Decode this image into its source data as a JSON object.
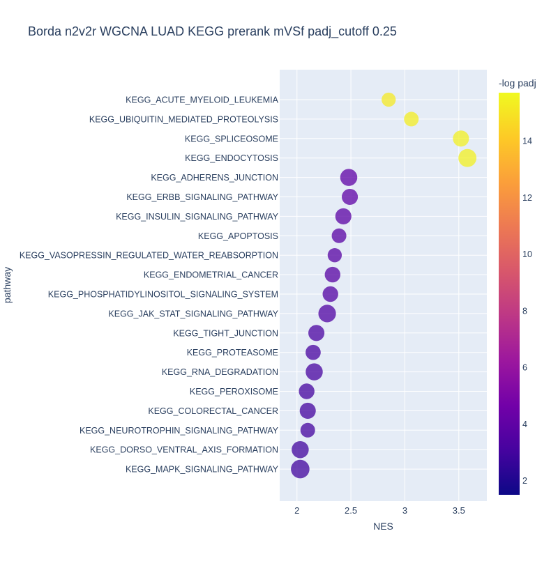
{
  "chart_data": {
    "type": "scatter",
    "title": "Borda n2v2r WGCNA LUAD KEGG prerank mVSf padj_cutoff 0.25",
    "xlabel": "NES",
    "ylabel": "pathway",
    "xlim": [
      1.84,
      3.76
    ],
    "xticks": [
      2,
      2.5,
      3,
      3.5
    ],
    "xtick_labels": [
      "2",
      "2.5",
      "3",
      "3.5"
    ],
    "grid": true,
    "colorbar": {
      "title": "-log padj",
      "range": [
        1.5,
        15.7
      ],
      "ticks": [
        2,
        4,
        6,
        8,
        10,
        12,
        14
      ],
      "tick_labels": [
        "2",
        "4",
        "6",
        "8",
        "10",
        "12",
        "14"
      ],
      "colorscale": [
        "#0d0887",
        "#46039f",
        "#7201a8",
        "#9c179e",
        "#bd3786",
        "#d8576b",
        "#ed7953",
        "#fb9f3a",
        "#fdca26",
        "#f0f921"
      ]
    },
    "colors": {
      "plot_background": "#e5ecf6",
      "grid": "#ffffff",
      "text": "#2a3f5f"
    },
    "points": [
      {
        "pathway": "KEGG_ACUTE_MYELOID_LEUKEMIA",
        "nes": 2.85,
        "neg_log_padj": 15.2,
        "size": 0.45
      },
      {
        "pathway": "KEGG_UBIQUITIN_MEDIATED_PROTEOLYSIS",
        "nes": 3.06,
        "neg_log_padj": 15.3,
        "size": 0.5
      },
      {
        "pathway": "KEGG_SPLICEOSOME",
        "nes": 3.52,
        "neg_log_padj": 15.4,
        "size": 0.65
      },
      {
        "pathway": "KEGG_ENDOCYTOSIS",
        "nes": 3.58,
        "neg_log_padj": 15.4,
        "size": 0.85
      },
      {
        "pathway": "KEGG_ADHERENS_JUNCTION",
        "nes": 2.48,
        "neg_log_padj": 3.9,
        "size": 0.75
      },
      {
        "pathway": "KEGG_ERBB_SIGNALING_PATHWAY",
        "nes": 2.49,
        "neg_log_padj": 3.9,
        "size": 0.65
      },
      {
        "pathway": "KEGG_INSULIN_SIGNALING_PATHWAY",
        "nes": 2.43,
        "neg_log_padj": 3.8,
        "size": 0.65
      },
      {
        "pathway": "KEGG_APOPTOSIS",
        "nes": 2.39,
        "neg_log_padj": 3.7,
        "size": 0.5
      },
      {
        "pathway": "KEGG_VASOPRESSIN_REGULATED_WATER_REABSORPTION",
        "nes": 2.35,
        "neg_log_padj": 3.6,
        "size": 0.45
      },
      {
        "pathway": "KEGG_ENDOMETRIAL_CANCER",
        "nes": 2.33,
        "neg_log_padj": 3.6,
        "size": 0.6
      },
      {
        "pathway": "KEGG_PHOSPHATIDYLINOSITOL_SIGNALING_SYSTEM",
        "nes": 2.31,
        "neg_log_padj": 3.5,
        "size": 0.6
      },
      {
        "pathway": "KEGG_JAK_STAT_SIGNALING_PATHWAY",
        "nes": 2.28,
        "neg_log_padj": 3.4,
        "size": 0.8
      },
      {
        "pathway": "KEGG_TIGHT_JUNCTION",
        "nes": 2.18,
        "neg_log_padj": 3.2,
        "size": 0.65
      },
      {
        "pathway": "KEGG_PROTEASOME",
        "nes": 2.15,
        "neg_log_padj": 3.1,
        "size": 0.55
      },
      {
        "pathway": "KEGG_RNA_DEGRADATION",
        "nes": 2.16,
        "neg_log_padj": 3.1,
        "size": 0.75
      },
      {
        "pathway": "KEGG_PEROXISOME",
        "nes": 2.09,
        "neg_log_padj": 3.0,
        "size": 0.6
      },
      {
        "pathway": "KEGG_COLORECTAL_CANCER",
        "nes": 2.1,
        "neg_log_padj": 3.0,
        "size": 0.65
      },
      {
        "pathway": "KEGG_NEUROTROPHIN_SIGNALING_PATHWAY",
        "nes": 2.1,
        "neg_log_padj": 3.0,
        "size": 0.5
      },
      {
        "pathway": "KEGG_DORSO_VENTRAL_AXIS_FORMATION",
        "nes": 2.03,
        "neg_log_padj": 2.9,
        "size": 0.75
      },
      {
        "pathway": "KEGG_MAPK_SIGNALING_PATHWAY",
        "nes": 2.03,
        "neg_log_padj": 2.9,
        "size": 0.9
      }
    ]
  }
}
